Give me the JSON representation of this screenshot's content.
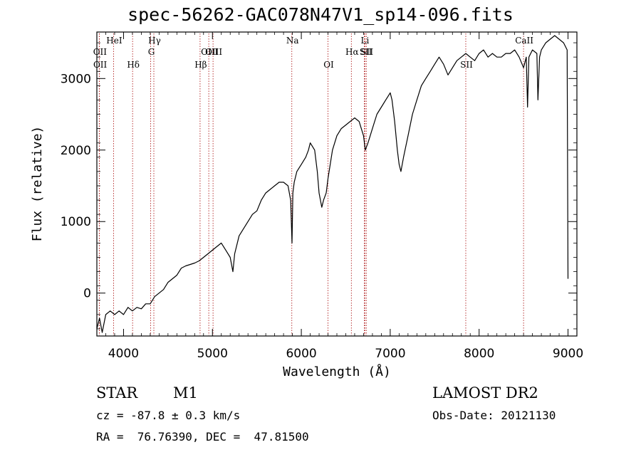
{
  "chart_data": {
    "type": "line",
    "title": "spec-56262-GAC078N47V1_sp14-096.fits",
    "xlabel": "Wavelength (Å)",
    "ylabel": "Flux (relative)",
    "xlim": [
      3700,
      9100
    ],
    "ylim": [
      -600,
      3650
    ],
    "xticks": [
      4000,
      5000,
      6000,
      7000,
      8000,
      9000
    ],
    "yticks": [
      0,
      1000,
      2000,
      3000
    ],
    "grid": false,
    "line_color": "#000000",
    "marker_color": "#b22222",
    "series": [
      {
        "x": [
          3700,
          3730,
          3760,
          3800,
          3850,
          3900,
          3950,
          4000,
          4050,
          4100,
          4150,
          4200,
          4250,
          4300,
          4350,
          4400,
          4450,
          4500,
          4550,
          4600,
          4650,
          4700,
          4750,
          4800,
          4850,
          4900,
          4950,
          5000,
          5050,
          5100,
          5150,
          5200,
          5230,
          5250,
          5300,
          5350,
          5400,
          5450,
          5500,
          5550,
          5600,
          5650,
          5700,
          5750,
          5800,
          5850,
          5880,
          5895,
          5905,
          5920,
          5950,
          6000,
          6050,
          6080,
          6100,
          6150,
          6180,
          6200,
          6230,
          6250,
          6280,
          6300,
          6350,
          6400,
          6450,
          6500,
          6550,
          6600,
          6650,
          6700,
          6720,
          6750,
          6800,
          6850,
          6900,
          6950,
          7000,
          7020,
          7050,
          7080,
          7100,
          7120,
          7150,
          7200,
          7250,
          7300,
          7350,
          7400,
          7450,
          7500,
          7550,
          7600,
          7650,
          7700,
          7750,
          7800,
          7850,
          7900,
          7950,
          8000,
          8050,
          8100,
          8150,
          8200,
          8250,
          8300,
          8350,
          8400,
          8450,
          8500,
          8530,
          8545,
          8560,
          8600,
          8650,
          8662,
          8680,
          8700,
          8750,
          8800,
          8850,
          8900,
          8950,
          8990,
          9000
        ],
        "y": [
          -500,
          -350,
          -550,
          -300,
          -250,
          -300,
          -250,
          -300,
          -200,
          -250,
          -200,
          -220,
          -150,
          -150,
          -50,
          0,
          50,
          150,
          200,
          250,
          350,
          380,
          400,
          420,
          450,
          500,
          550,
          600,
          650,
          700,
          600,
          500,
          300,
          550,
          800,
          900,
          1000,
          1100,
          1150,
          1300,
          1400,
          1450,
          1500,
          1550,
          1550,
          1500,
          1300,
          700,
          1400,
          1550,
          1700,
          1800,
          1900,
          2000,
          2100,
          2000,
          1700,
          1400,
          1200,
          1300,
          1400,
          1600,
          2000,
          2200,
          2300,
          2350,
          2400,
          2450,
          2400,
          2200,
          2000,
          2100,
          2300,
          2500,
          2600,
          2700,
          2800,
          2700,
          2400,
          2000,
          1800,
          1700,
          1900,
          2200,
          2500,
          2700,
          2900,
          3000,
          3100,
          3200,
          3300,
          3200,
          3050,
          3150,
          3250,
          3300,
          3350,
          3300,
          3250,
          3350,
          3400,
          3300,
          3350,
          3300,
          3300,
          3350,
          3350,
          3400,
          3300,
          3150,
          3300,
          2600,
          3300,
          3400,
          3350,
          2700,
          3300,
          3400,
          3500,
          3550,
          3600,
          3550,
          3500,
          3400,
          200
        ]
      }
    ],
    "line_markers": [
      {
        "label": "HeI",
        "x": 3888,
        "row": 1
      },
      {
        "label": "OII",
        "x": 3727,
        "row": 2
      },
      {
        "label": "OII",
        "x": 3729,
        "row": 3
      },
      {
        "label": "Hδ",
        "x": 4102,
        "row": 3
      },
      {
        "label": "Hγ",
        "x": 4341,
        "row": 1
      },
      {
        "label": "G",
        "x": 4305,
        "row": 2
      },
      {
        "label": "Hβ",
        "x": 4861,
        "row": 3
      },
      {
        "label": "OIII",
        "x": 4959,
        "row": 2
      },
      {
        "label": "OIII",
        "x": 5007,
        "row": 2
      },
      {
        "label": "Na",
        "x": 5893,
        "row": 1
      },
      {
        "label": "OI",
        "x": 6300,
        "row": 3
      },
      {
        "label": "Hα",
        "x": 6563,
        "row": 2
      },
      {
        "label": "SII",
        "x": 6717,
        "row": 2
      },
      {
        "label": "SII",
        "x": 6731,
        "row": 2
      },
      {
        "label": "Li",
        "x": 6708,
        "row": 1
      },
      {
        "label": "SII",
        "x": 7850,
        "row": 3
      },
      {
        "label": "CaII",
        "x": 8500,
        "row": 1
      }
    ]
  },
  "info": {
    "classification": "STAR",
    "subclass": "M1",
    "redshift": "cz = -87.8 ± 0.3 km/s",
    "coords": "RA =  76.76390, DEC =  47.81500",
    "survey": "LAMOST DR2",
    "obs_date": "Obs-Date: 20121130"
  }
}
